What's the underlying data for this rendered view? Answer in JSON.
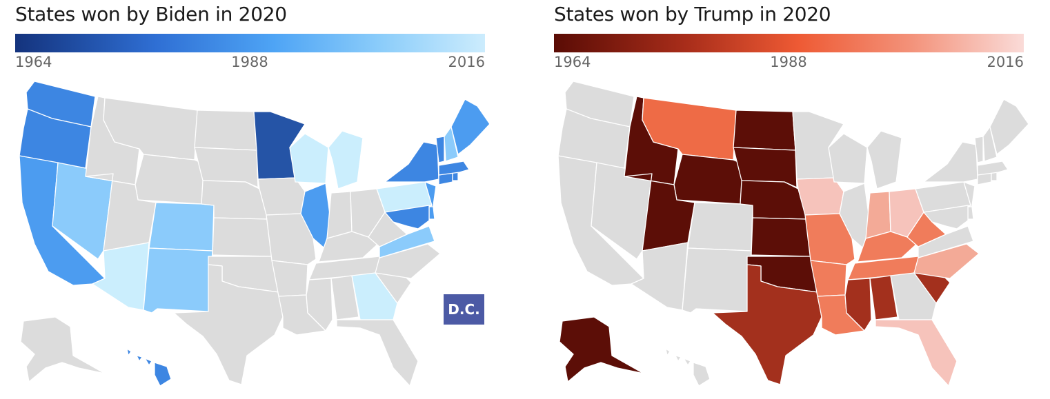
{
  "colors": {
    "neutral": "#dcdcdc",
    "border": "#ffffff"
  },
  "biden": {
    "title": "States won by Biden in 2020",
    "legend": {
      "start": "1964",
      "mid": "1988",
      "end": "2016"
    },
    "dc_label": "D.C.",
    "dc_color": "#4c5aa5",
    "states": {
      "WA": "#3d86e2",
      "OR": "#3d86e2",
      "CA": "#4c9cf0",
      "NV": "#8bcbfb",
      "AZ": "#cbeefd",
      "CO": "#8bcbfb",
      "NM": "#8bcbfb",
      "MN": "#2554a6",
      "WI": "#cbeefd",
      "MI": "#cbeefd",
      "IL": "#4c9cf0",
      "PA": "#cbeefd",
      "GA": "#cbeefd",
      "VA": "#8bcbfb",
      "NY": "#3d86e2",
      "NJ": "#4c9cf0",
      "MD": "#3d86e2",
      "DE": "#4c9cf0",
      "CT": "#3d86e2",
      "RI": "#3d86e2",
      "MA": "#3d86e2",
      "VT": "#3d86e2",
      "NH": "#8bcbfb",
      "ME": "#4c9cf0",
      "HI": "#3d86e2"
    }
  },
  "trump": {
    "title": "States won by Trump in 2020",
    "legend": {
      "start": "1964",
      "mid": "1988",
      "end": "2016"
    },
    "states": {
      "MT": "#ee6b46",
      "ID": "#5c0e07",
      "WY": "#5c0e07",
      "UT": "#5c0e07",
      "ND": "#5c0e07",
      "SD": "#5c0e07",
      "NE": "#5c0e07",
      "KS": "#5c0e07",
      "OK": "#5c0e07",
      "AK": "#5c0e07",
      "TX": "#a3301d",
      "MS": "#a3301d",
      "AL": "#a3301d",
      "SC": "#a3301d",
      "MO": "#f07c5b",
      "AR": "#f07c5b",
      "LA": "#f07c5b",
      "KY": "#f07c5b",
      "TN": "#f07c5b",
      "WV": "#f07c5b",
      "IA": "#f6c3bb",
      "OH": "#f6c3bb",
      "FL": "#f6c3bb",
      "IN": "#f3aa97",
      "NC": "#f3aa97"
    }
  }
}
